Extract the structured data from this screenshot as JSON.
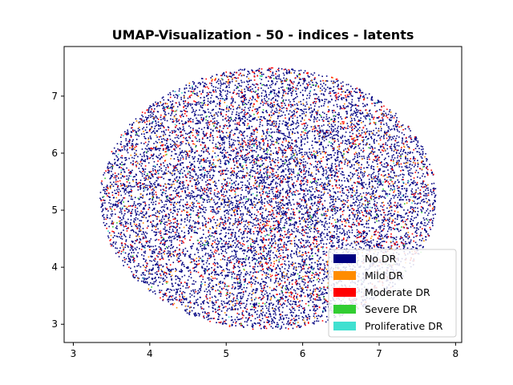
{
  "chart_data": {
    "type": "scatter",
    "title": "UMAP-Visualization - 50 - indices - latents",
    "xlabel": "",
    "ylabel": "",
    "xlim": [
      2.88,
      8.08
    ],
    "ylim": [
      2.68,
      7.87
    ],
    "x_ticks": [
      3,
      4,
      5,
      6,
      7,
      8
    ],
    "y_ticks": [
      3,
      4,
      5,
      6,
      7
    ],
    "x_tick_labels": [
      "3",
      "4",
      "5",
      "6",
      "7",
      "8"
    ],
    "y_tick_labels": [
      "3",
      "4",
      "5",
      "6",
      "7"
    ],
    "grid": false,
    "legend_position": "lower-right",
    "cloud": {
      "center": [
        5.55,
        5.2
      ],
      "radius_x": 2.2,
      "radius_y": 2.3
    },
    "series": [
      {
        "name": "No DR",
        "color": "#000080",
        "approx_points": 9000
      },
      {
        "name": "Mild DR",
        "color": "#ff8c00",
        "approx_points": 450
      },
      {
        "name": "Moderate DR",
        "color": "#ff0000",
        "approx_points": 1400
      },
      {
        "name": "Severe DR",
        "color": "#32cd32",
        "approx_points": 150
      },
      {
        "name": "Proliferative DR",
        "color": "#40e0d0",
        "approx_points": 120
      }
    ]
  }
}
